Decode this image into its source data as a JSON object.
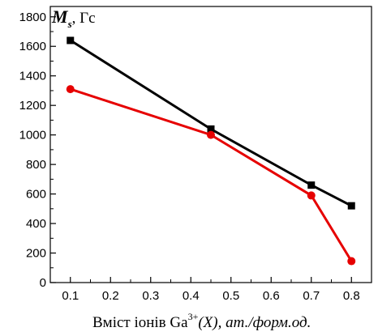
{
  "chart_data": {
    "type": "line",
    "ylabel": {
      "symbol": "M",
      "subscript": "s",
      "unit": ", Гс"
    },
    "xlabel": {
      "prefix": "Вміст іонів Ga",
      "superscript": "3+",
      "middle": "(X), ",
      "units": "ат./форм.од."
    },
    "x": [
      0.1,
      0.45,
      0.7,
      0.8
    ],
    "xticks": [
      0.1,
      0.2,
      0.3,
      0.4,
      0.5,
      0.6,
      0.7,
      0.8
    ],
    "yticks": [
      0,
      200,
      400,
      600,
      800,
      1000,
      1200,
      1400,
      1600,
      1800
    ],
    "xlim": [
      0.05,
      0.85
    ],
    "ylim": [
      0,
      1870
    ],
    "grid": false,
    "series": [
      {
        "values": [
          1640,
          1040,
          660,
          520
        ],
        "color": "#000000",
        "marker": "square"
      },
      {
        "values": [
          1310,
          1000,
          590,
          145
        ],
        "color": "#e60000",
        "marker": "circle"
      }
    ]
  }
}
